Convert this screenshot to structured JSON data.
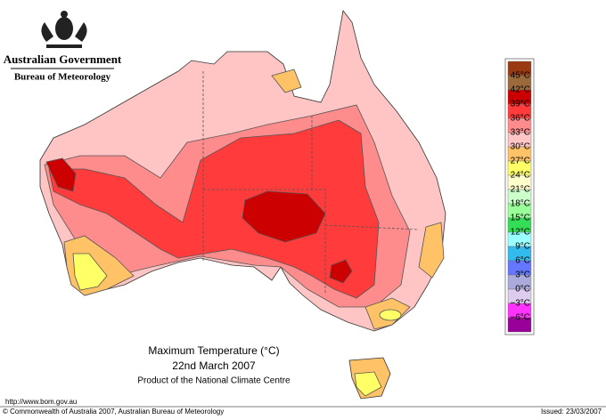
{
  "header": {
    "agency": "Australian Government",
    "bureau": "Bureau of Meteorology"
  },
  "legend": {
    "colors": [
      "#9a3a12",
      "#9c6a3a",
      "#cc0000",
      "#ff3b3b",
      "#ff8c8c",
      "#ffc4c4",
      "#ffc266",
      "#ffff66",
      "#ffffcc",
      "#ccffcc",
      "#99ff99",
      "#33dd55",
      "#99ffff",
      "#33bbee",
      "#6677ff",
      "#aaaadd",
      "#ddccee",
      "#ff33ff",
      "#990099"
    ],
    "labels": [
      "45°C",
      "42°C",
      "39°C",
      "36°C",
      "33°C",
      "30°C",
      "27°C",
      "24°C",
      "21°C",
      "18°C",
      "15°C",
      "12°C",
      "9°C",
      "6°C",
      "3°C",
      "0°C",
      "−3°C",
      "−6°C"
    ]
  },
  "caption": {
    "title": "Maximum Temperature (°C)",
    "date": "22nd March 2007",
    "product": "Product of the National Climate Centre"
  },
  "footer": {
    "url": "http://www.bom.gov.au",
    "copyright": "© Commonwealth of Australia 2007, Australian Bureau of Meteorology",
    "issued": "Issued: 23/03/2007"
  }
}
